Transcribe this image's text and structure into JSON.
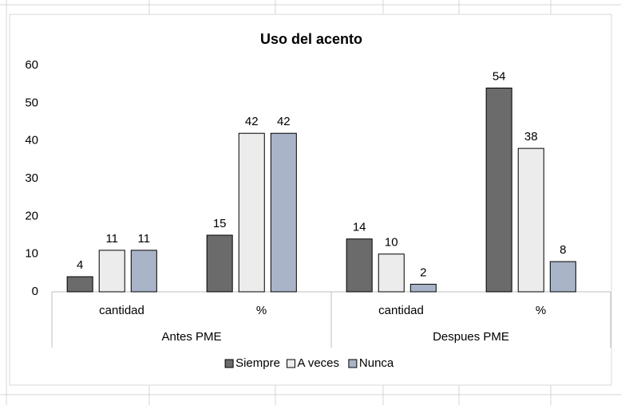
{
  "chart_data": {
    "type": "bar",
    "title": "Uso del acento",
    "categories": [
      "cantidad",
      "%",
      "cantidad",
      "%"
    ],
    "groups": [
      "Antes PME",
      "Despues PME"
    ],
    "series": [
      {
        "name": "Siempre",
        "color": "#6b6b6b",
        "values": [
          4,
          15,
          14,
          54
        ]
      },
      {
        "name": "A veces",
        "color": "#ececec",
        "values": [
          11,
          42,
          10,
          38
        ]
      },
      {
        "name": "Nunca",
        "color": "#a9b4c8",
        "values": [
          11,
          42,
          2,
          8
        ]
      }
    ],
    "ylim": [
      0,
      60
    ],
    "yticks": [
      0,
      10,
      20,
      30,
      40,
      50,
      60
    ],
    "grid": false,
    "legend": "bottom"
  }
}
